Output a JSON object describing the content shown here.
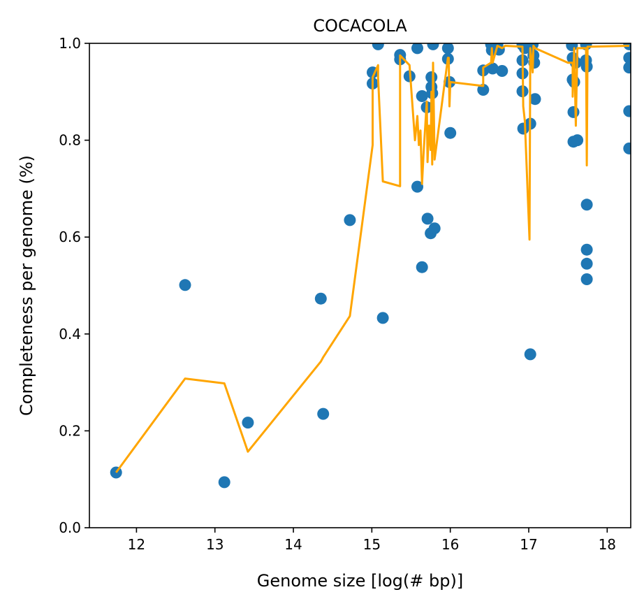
{
  "chart_data": {
    "type": "scatter",
    "title": "COCACOLA",
    "xlabel": "Genome size [log(# bp)]",
    "ylabel": "Completeness per genome (%)",
    "xlim": [
      11.4,
      18.3
    ],
    "ylim": [
      0.0,
      1.0
    ],
    "xticks": [
      12,
      13,
      14,
      15,
      16,
      17,
      18
    ],
    "yticks": [
      0.0,
      0.2,
      0.4,
      0.6,
      0.8,
      1.0
    ],
    "xtick_labels": [
      "12",
      "13",
      "14",
      "15",
      "16",
      "17",
      "18"
    ],
    "ytick_labels": [
      "0.0",
      "0.2",
      "0.4",
      "0.6",
      "0.8",
      "1.0"
    ],
    "grid": false,
    "legend": "none",
    "colors": {
      "points": "#1f77b4",
      "line": "#ffa500"
    },
    "series": [
      {
        "kind": "scatter",
        "points": [
          [
            11.74,
            0.114
          ],
          [
            12.62,
            0.501
          ],
          [
            13.12,
            0.094
          ],
          [
            13.42,
            0.217
          ],
          [
            14.35,
            0.473
          ],
          [
            14.38,
            0.235
          ],
          [
            14.72,
            0.635
          ],
          [
            15.01,
            0.94
          ],
          [
            15.01,
            0.917
          ],
          [
            15.08,
            0.998
          ],
          [
            15.14,
            0.433
          ],
          [
            15.36,
            0.976
          ],
          [
            15.36,
            0.967
          ],
          [
            15.48,
            0.932
          ],
          [
            15.58,
            0.704
          ],
          [
            15.58,
            0.99
          ],
          [
            15.64,
            0.538
          ],
          [
            15.64,
            0.891
          ],
          [
            15.7,
            0.868
          ],
          [
            15.71,
            0.638
          ],
          [
            15.75,
            0.608
          ],
          [
            15.76,
            0.93
          ],
          [
            15.76,
            0.91
          ],
          [
            15.77,
            0.897
          ],
          [
            15.78,
            0.998
          ],
          [
            15.8,
            0.618
          ],
          [
            15.97,
            0.99
          ],
          [
            15.97,
            0.968
          ],
          [
            15.99,
            0.92
          ],
          [
            16.0,
            0.815
          ],
          [
            16.42,
            0.944
          ],
          [
            16.42,
            0.904
          ],
          [
            16.52,
            0.998
          ],
          [
            16.53,
            0.986
          ],
          [
            16.54,
            0.948
          ],
          [
            16.6,
            0.998
          ],
          [
            16.62,
            0.987
          ],
          [
            16.66,
            0.943
          ],
          [
            16.92,
            0.997
          ],
          [
            16.92,
            0.965
          ],
          [
            16.92,
            0.938
          ],
          [
            16.92,
            0.901
          ],
          [
            16.93,
            0.824
          ],
          [
            16.95,
            0.99
          ],
          [
            17.02,
            0.834
          ],
          [
            17.02,
            0.358
          ],
          [
            17.05,
            0.998
          ],
          [
            17.06,
            0.975
          ],
          [
            17.07,
            0.96
          ],
          [
            17.08,
            0.885
          ],
          [
            17.55,
            0.996
          ],
          [
            17.56,
            0.97
          ],
          [
            17.56,
            0.925
          ],
          [
            17.57,
            0.858
          ],
          [
            17.57,
            0.797
          ],
          [
            17.58,
            0.92
          ],
          [
            17.6,
            0.96
          ],
          [
            17.62,
            0.8
          ],
          [
            17.73,
            0.998
          ],
          [
            17.73,
            0.965
          ],
          [
            17.74,
            0.952
          ],
          [
            17.74,
            0.667
          ],
          [
            17.74,
            0.574
          ],
          [
            17.74,
            0.545
          ],
          [
            17.74,
            0.513
          ],
          [
            18.28,
            0.998
          ],
          [
            18.28,
            0.97
          ],
          [
            18.28,
            0.95
          ],
          [
            18.28,
            0.86
          ],
          [
            18.28,
            0.783
          ]
        ]
      },
      {
        "kind": "line",
        "points": [
          [
            11.74,
            0.114
          ],
          [
            12.62,
            0.308
          ],
          [
            13.12,
            0.298
          ],
          [
            13.42,
            0.157
          ],
          [
            14.35,
            0.343
          ],
          [
            14.38,
            0.352
          ],
          [
            14.72,
            0.437
          ],
          [
            15.01,
            0.79
          ],
          [
            15.01,
            0.93
          ],
          [
            15.08,
            0.955
          ],
          [
            15.08,
            0.93
          ],
          [
            15.14,
            0.715
          ],
          [
            15.36,
            0.705
          ],
          [
            15.36,
            0.975
          ],
          [
            15.48,
            0.955
          ],
          [
            15.55,
            0.8
          ],
          [
            15.58,
            0.85
          ],
          [
            15.6,
            0.79
          ],
          [
            15.62,
            0.82
          ],
          [
            15.64,
            0.71
          ],
          [
            15.66,
            0.775
          ],
          [
            15.7,
            0.88
          ],
          [
            15.71,
            0.755
          ],
          [
            15.73,
            0.83
          ],
          [
            15.75,
            0.78
          ],
          [
            15.76,
            0.9
          ],
          [
            15.77,
            0.75
          ],
          [
            15.78,
            0.96
          ],
          [
            15.8,
            0.76
          ],
          [
            15.97,
            0.97
          ],
          [
            15.98,
            0.97
          ],
          [
            15.99,
            0.87
          ],
          [
            16.0,
            0.92
          ],
          [
            16.42,
            0.912
          ],
          [
            16.42,
            0.95
          ],
          [
            16.52,
            0.96
          ],
          [
            16.53,
            0.99
          ],
          [
            16.54,
            0.96
          ],
          [
            16.6,
            0.995
          ],
          [
            16.66,
            0.99
          ],
          [
            16.7,
            0.995
          ],
          [
            16.92,
            0.993
          ],
          [
            16.93,
            0.87
          ],
          [
            16.95,
            0.84
          ],
          [
            17.01,
            0.595
          ],
          [
            17.02,
            0.99
          ],
          [
            17.05,
            0.94
          ],
          [
            17.06,
            0.995
          ],
          [
            17.08,
            0.99
          ],
          [
            17.5,
            0.96
          ],
          [
            17.56,
            0.96
          ],
          [
            17.56,
            0.89
          ],
          [
            17.58,
            0.99
          ],
          [
            17.6,
            0.83
          ],
          [
            17.62,
            0.99
          ],
          [
            17.73,
            0.99
          ],
          [
            17.74,
            0.748
          ],
          [
            17.75,
            0.993
          ],
          [
            18.28,
            0.995
          ]
        ]
      }
    ]
  }
}
